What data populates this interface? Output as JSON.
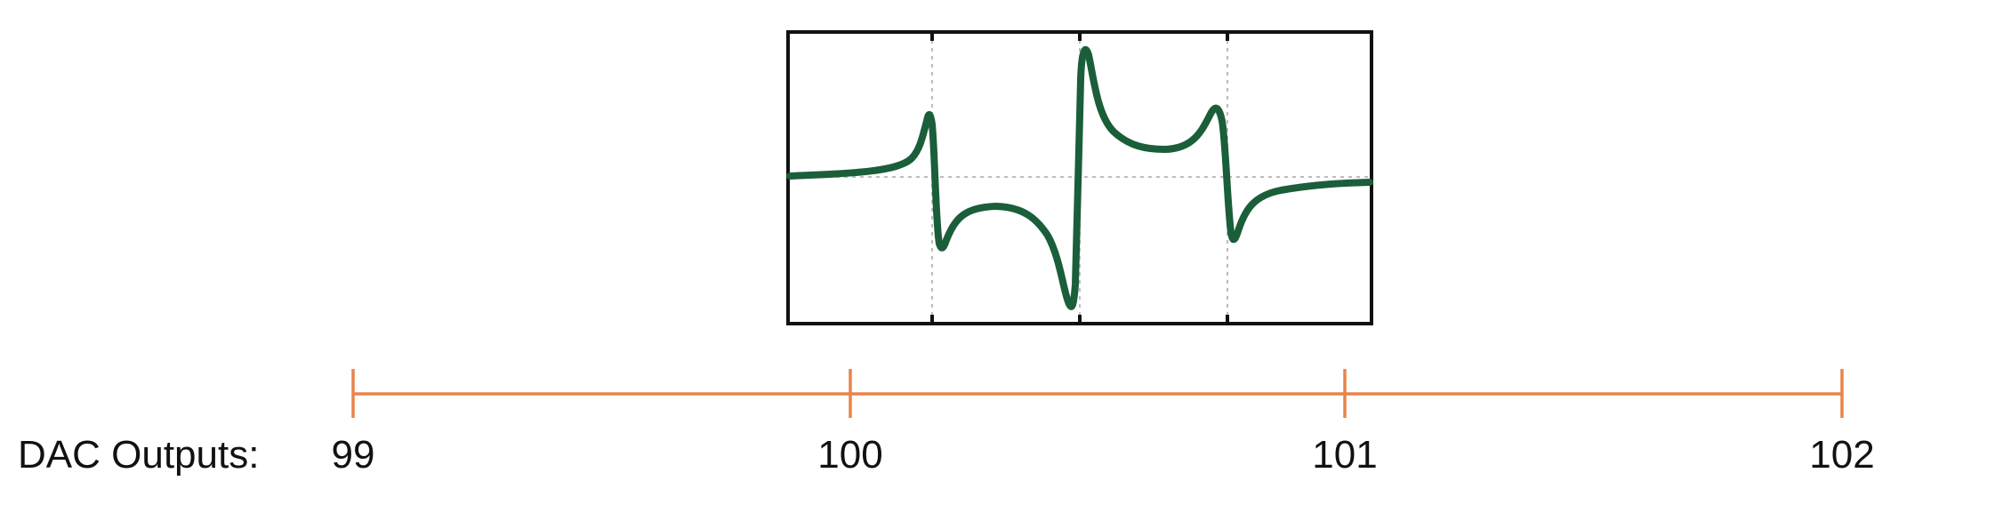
{
  "dac": {
    "label": "DAC Outputs:",
    "values": [
      "99",
      "100",
      "101",
      "102"
    ]
  },
  "colors": {
    "signal": "#1a5e3a",
    "scale": "#e8844a",
    "frame": "#111111",
    "grid": "#bdbdbd"
  }
}
